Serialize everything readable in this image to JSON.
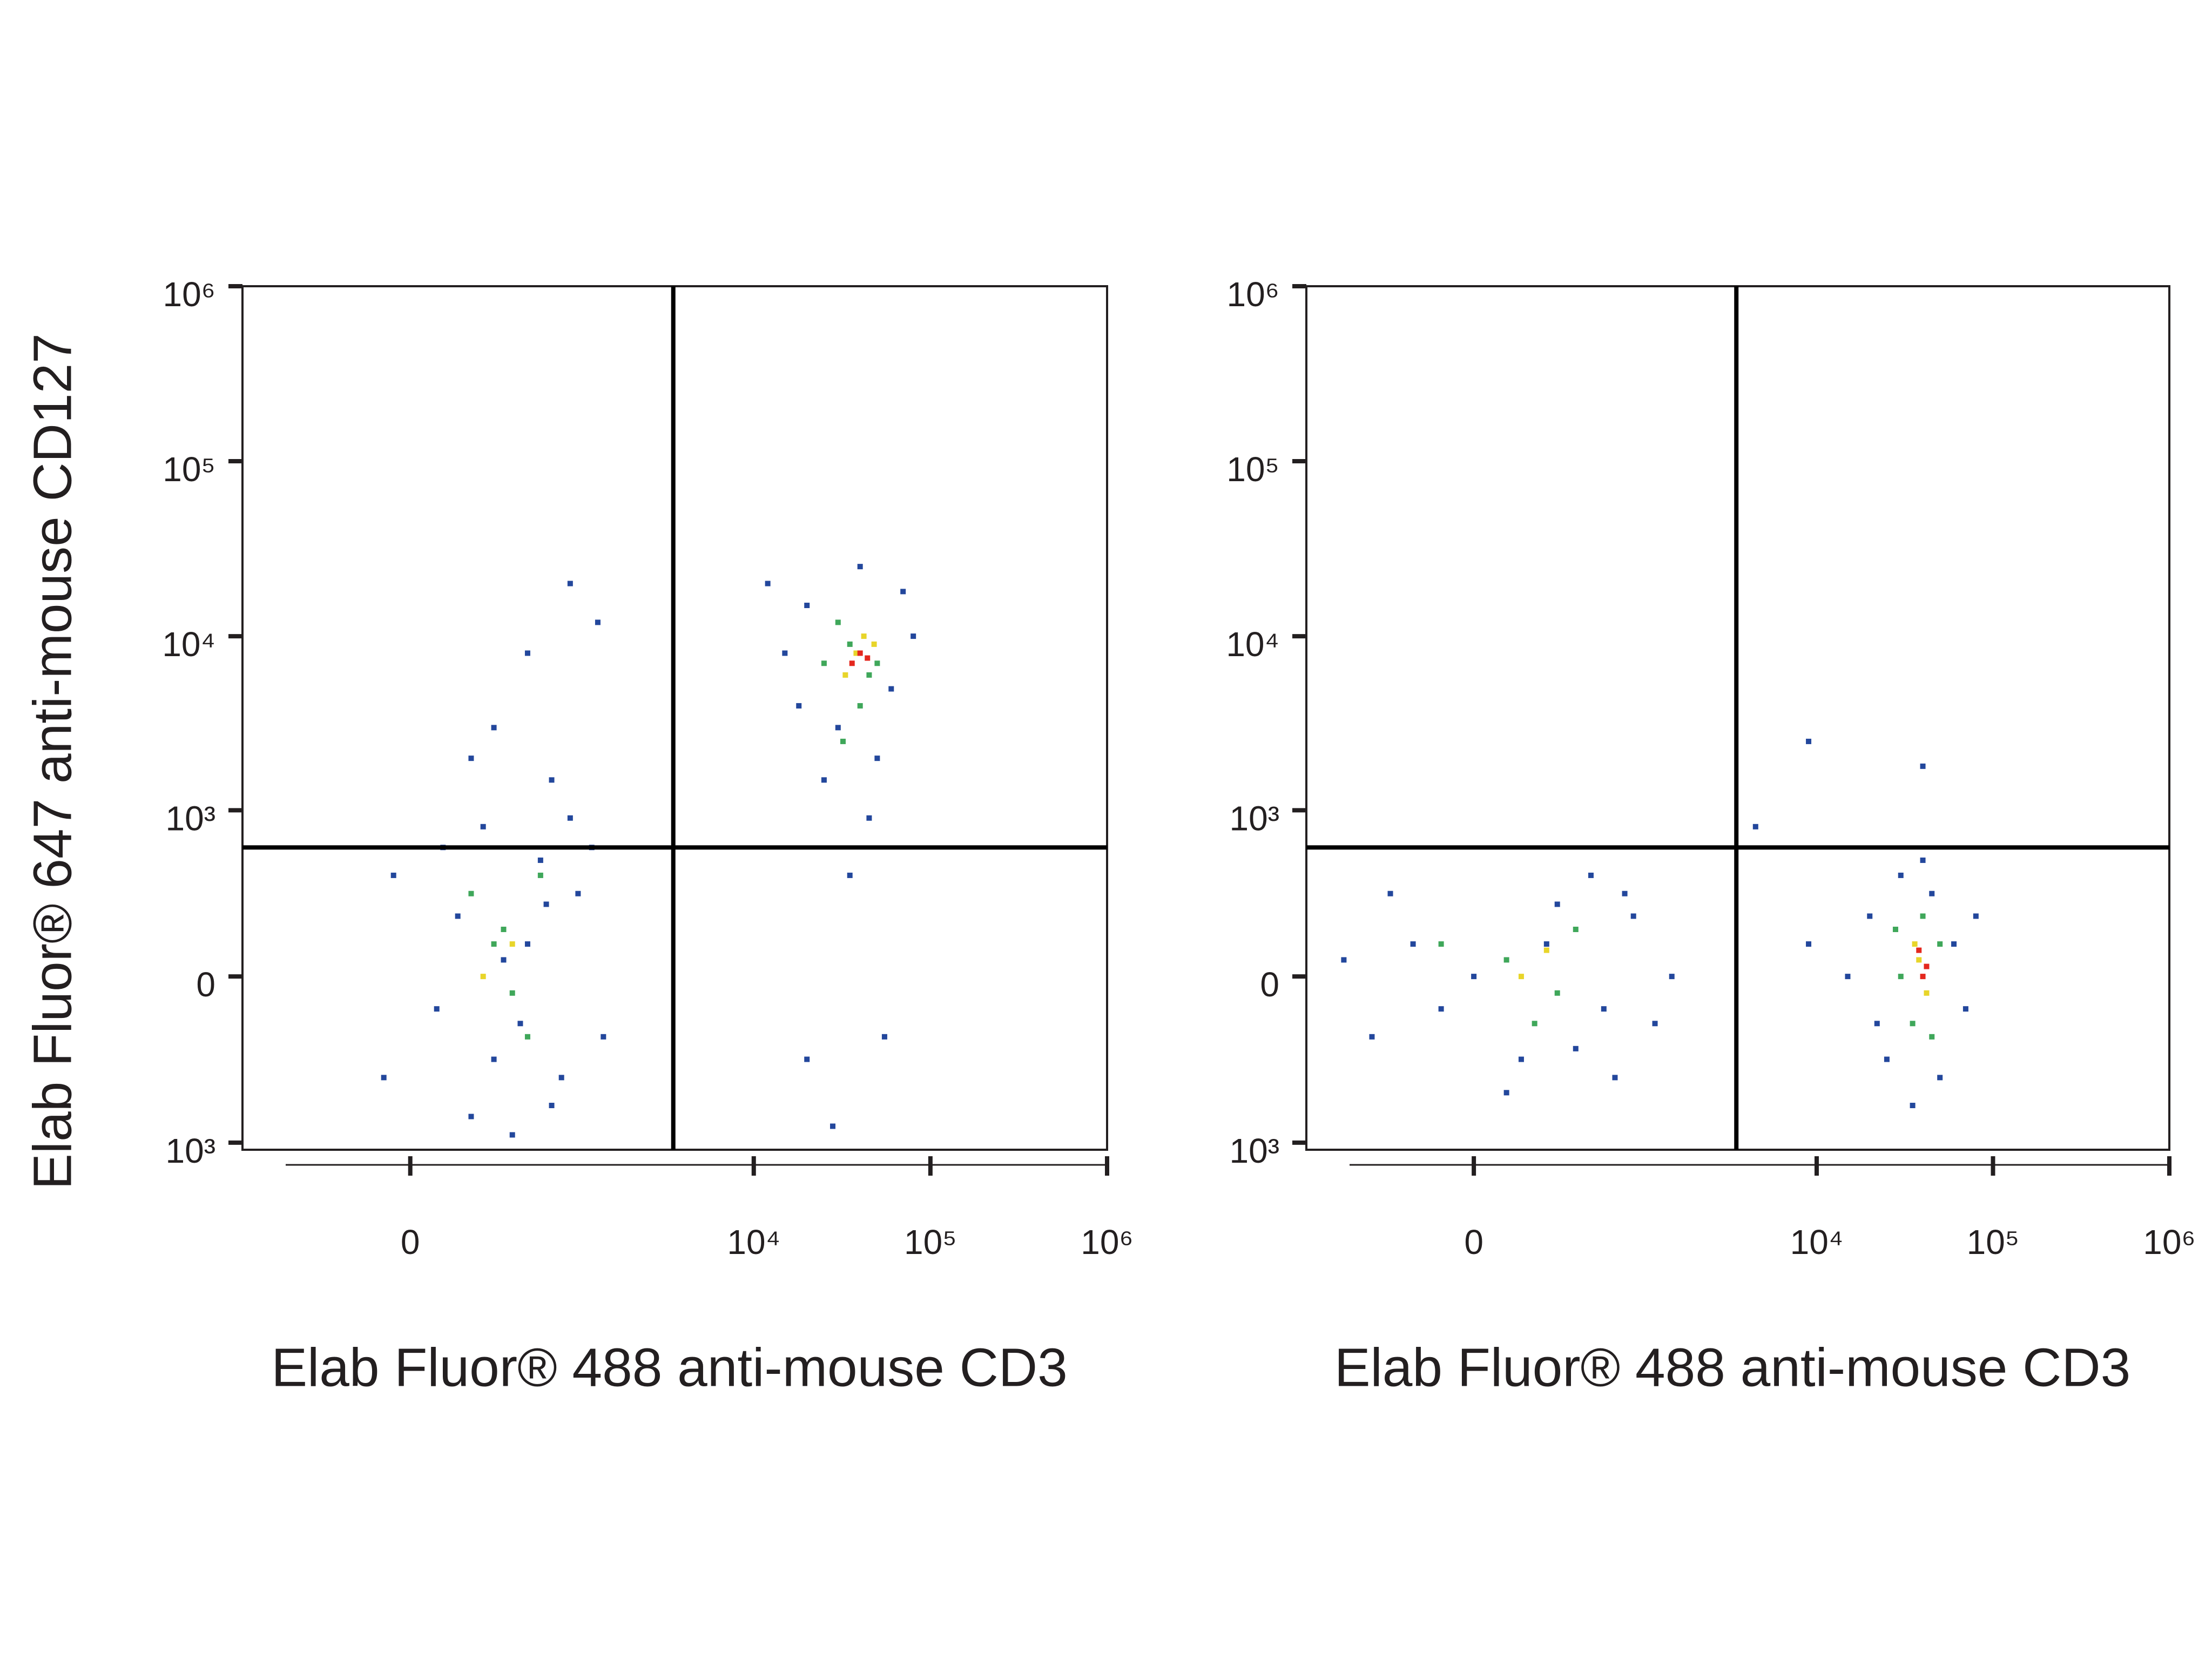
{
  "chart_data": [
    {
      "type": "scatter",
      "scale": "biexponential",
      "x_label": "Elab Fluor® 488 anti-mouse CD3",
      "y_label": "Elab Fluor® 647 anti-mouse CD127",
      "xlim": [
        -1000,
        1000000
      ],
      "ylim": [
        -1100,
        1000000
      ],
      "xticks": [
        0,
        {
          "value": 10000,
          "label": "10⁴"
        },
        {
          "value": 100000,
          "label": "10⁵"
        },
        {
          "value": 1000000,
          "label": "10⁶"
        }
      ],
      "yticks": [
        {
          "value": -1000,
          "label": "10³"
        },
        0,
        {
          "value": 1000,
          "label": "10³"
        },
        {
          "value": 10000,
          "label": "10⁴"
        },
        {
          "value": 100000,
          "label": "10⁵"
        },
        {
          "value": 1000000,
          "label": "10⁶"
        }
      ],
      "gate_x": 3500,
      "gate_y": 600,
      "series": [
        {
          "color": "#23479c",
          "x": [
            150,
            300,
            500,
            -50,
            700,
            250,
            400,
            1000,
            1400,
            80,
            600,
            200,
            900,
            -80,
            350,
            1200,
            450,
            800,
            100,
            650,
            300,
            500,
            900,
            700,
            1300,
            200,
            20000,
            40000,
            15000,
            60000,
            30000,
            25000,
            45000,
            35000,
            20000,
            80000,
            12000,
            50000,
            28000,
            70000,
            18000,
            55000
          ],
          "values": [
            200,
            -300,
            100,
            400,
            -600,
            800,
            -900,
            300,
            -200,
            -100,
            500,
            -700,
            900,
            -400,
            50,
            600,
            -150,
            -400,
            600,
            250,
            3000,
            8000,
            20000,
            1500,
            12000,
            2000,
            15000,
            25000,
            8000,
            5000,
            3000,
            1500,
            900,
            400,
            -300,
            10000,
            20000,
            2000,
            -800,
            18000,
            4000,
            -200
          ]
        },
        {
          "color": "#3fa75a",
          "x": [
            300,
            500,
            200,
            600,
            400,
            350,
            35000,
            45000,
            30000,
            40000,
            50000,
            25000,
            32000
          ],
          "values": [
            100,
            -200,
            300,
            400,
            -50,
            150,
            9000,
            6000,
            12000,
            4000,
            7000,
            7000,
            2500
          ]
        },
        {
          "color": "#e8d52a",
          "x": [
            400,
            250,
            38000,
            42000,
            33000,
            48000
          ],
          "values": [
            100,
            0,
            8000,
            10000,
            6000,
            9000
          ]
        },
        {
          "color": "#e4281e",
          "x": [
            40000,
            36000,
            44000
          ],
          "values": [
            8000,
            7000,
            7500
          ]
        }
      ]
    },
    {
      "type": "scatter",
      "scale": "biexponential",
      "x_label": "Elab Fluor® 488 anti-mouse CD3",
      "xlim": [
        -1000,
        1000000
      ],
      "ylim": [
        -1100,
        1000000
      ],
      "xticks": [
        0,
        {
          "value": 10000,
          "label": "10⁴"
        },
        {
          "value": 100000,
          "label": "10⁵"
        },
        {
          "value": 1000000,
          "label": "10⁶"
        }
      ],
      "yticks": [
        {
          "value": -1000,
          "label": "10³"
        },
        0,
        {
          "value": 1000,
          "label": "10³"
        },
        {
          "value": 10000,
          "label": "10⁴"
        },
        {
          "value": 100000,
          "label": "10⁵"
        },
        {
          "value": 1000000,
          "label": "10⁶"
        }
      ],
      "gate_x": 3500,
      "gate_y": 600,
      "series": [
        {
          "color": "#23479c",
          "x": [
            0,
            -200,
            -400,
            150,
            300,
            600,
            900,
            1200,
            -300,
            500,
            100,
            700,
            -600,
            1500,
            250,
            -100,
            800,
            400,
            15000,
            20000,
            25000,
            30000,
            60000,
            50000,
            40000,
            70000,
            22000,
            45000,
            80000,
            35000,
            9000,
            4500,
            9000,
            40000
          ],
          "values": [
            0,
            100,
            -200,
            -300,
            250,
            -100,
            200,
            -150,
            300,
            400,
            -500,
            -400,
            50,
            0,
            100,
            -100,
            300,
            -250,
            0,
            200,
            -300,
            400,
            100,
            -400,
            500,
            -100,
            -150,
            300,
            200,
            -600,
            100,
            800,
            2500,
            1800
          ]
        },
        {
          "color": "#3fa75a",
          "x": [
            100,
            300,
            -100,
            400,
            200,
            30000,
            40000,
            45000,
            35000,
            50000,
            28000
          ],
          "values": [
            50,
            -50,
            100,
            150,
            -150,
            0,
            200,
            -200,
            -150,
            100,
            150
          ]
        },
        {
          "color": "#e8d52a",
          "x": [
            150,
            250,
            38000,
            42000,
            36000
          ],
          "values": [
            0,
            80,
            50,
            -50,
            100
          ]
        },
        {
          "color": "#e4281e",
          "x": [
            40000,
            38000,
            42000
          ],
          "values": [
            0,
            80,
            30
          ]
        }
      ]
    }
  ]
}
